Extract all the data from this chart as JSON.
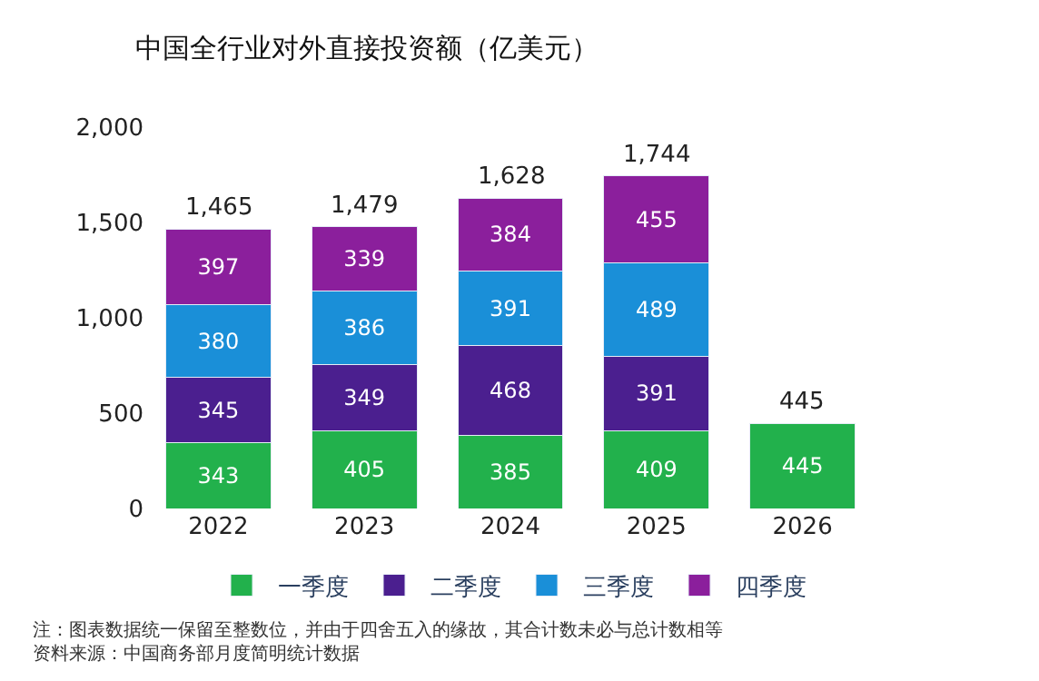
{
  "chart_data": {
    "type": "bar",
    "title": "中国全行业对外直接投资额（亿美元）",
    "stacked": true,
    "categories": [
      "2022",
      "2023",
      "2024",
      "2025",
      "2026"
    ],
    "series": [
      {
        "name": "一季度",
        "color": "#22b14c",
        "values": [
          343,
          405,
          385,
          409,
          445
        ]
      },
      {
        "name": "二季度",
        "color": "#4b1f8f",
        "values": [
          345,
          349,
          468,
          391,
          null
        ]
      },
      {
        "name": "三季度",
        "color": "#1a8fd8",
        "values": [
          380,
          386,
          391,
          489,
          null
        ]
      },
      {
        "name": "四季度",
        "color": "#8b1f9c",
        "values": [
          397,
          339,
          384,
          455,
          null
        ]
      }
    ],
    "totals": [
      "1,465",
      "1,479",
      "1,628",
      "1,744",
      "445"
    ],
    "data_labels": true,
    "ylim": [
      0,
      2000
    ],
    "yticks": [
      0,
      500,
      {
        "value": 1000,
        "label": "1,000"
      },
      {
        "value": 1500,
        "label": "1,500"
      },
      {
        "value": 2000,
        "label": "2,000"
      }
    ],
    "grid": false,
    "legend": "bottom",
    "annotations": [
      "注：图表数据统一保留至整数位，并由于四舍五入的缘故，其合计数未必与总计数相等",
      "资料来源：中国商务部月度简明统计数据"
    ]
  }
}
